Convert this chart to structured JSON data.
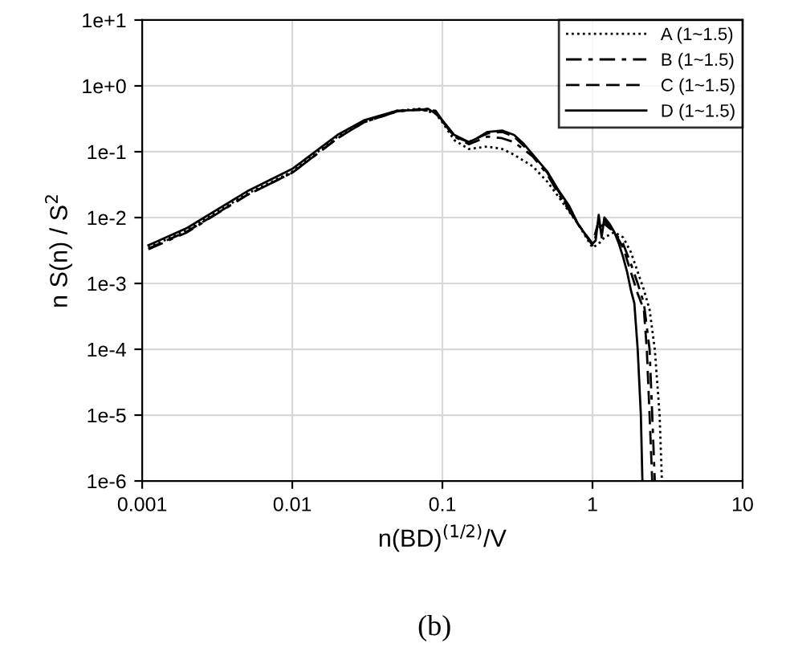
{
  "chart_data": {
    "type": "line",
    "xlabel": "n(BD)$^{(1/2)}$/V",
    "ylabel": "n S(n) / S$^{2}$",
    "annotations": [
      "(b)"
    ],
    "log": "xy",
    "grid": true,
    "legend": "top right",
    "xlim": [
      0.001,
      10
    ],
    "xticks": [
      0.001,
      0.01,
      0.1,
      1,
      10
    ],
    "ylim": [
      1e-06,
      10
    ],
    "yticks": [
      {
        "value": 1e-06,
        "label": "1e-6"
      },
      {
        "value": 1e-05,
        "label": "1e-5"
      },
      {
        "value": 0.0001,
        "label": "1e-4"
      },
      {
        "value": 0.001,
        "label": "1e-3"
      },
      {
        "value": 0.01,
        "label": "1e-2"
      },
      {
        "value": 0.1,
        "label": "1e-1"
      },
      {
        "value": 1,
        "label": "1e+0"
      },
      {
        "value": 10,
        "label": "1e+1"
      }
    ],
    "series": [
      {
        "name": "A (1~1.5)",
        "color": "#000000",
        "line_style": "dotted",
        "x": [
          0.0011,
          0.002,
          0.005,
          0.01,
          0.02,
          0.03,
          0.05,
          0.07,
          0.09,
          0.1,
          0.12,
          0.15,
          0.2,
          0.25,
          0.3,
          0.4,
          0.5,
          0.6,
          0.8,
          1.0,
          1.1,
          1.2,
          1.4,
          1.6,
          1.8,
          2.0,
          2.2,
          2.4,
          2.6,
          2.8,
          2.9
        ],
        "values": [
          0.0035,
          0.0065,
          0.023,
          0.05,
          0.17,
          0.29,
          0.42,
          0.45,
          0.38,
          0.28,
          0.15,
          0.11,
          0.12,
          0.11,
          0.09,
          0.06,
          0.035,
          0.02,
          0.008,
          0.0035,
          0.004,
          0.005,
          0.006,
          0.005,
          0.003,
          0.0015,
          0.0008,
          0.0004,
          0.0001,
          1e-05,
          1e-06
        ]
      },
      {
        "name": "B (1~1.5)",
        "color": "#000000",
        "line_style": "dashdot",
        "x": [
          0.0011,
          0.002,
          0.005,
          0.01,
          0.02,
          0.03,
          0.05,
          0.07,
          0.09,
          0.1,
          0.12,
          0.15,
          0.2,
          0.25,
          0.3,
          0.4,
          0.5,
          0.6,
          0.8,
          1.0,
          1.1,
          1.2,
          1.4,
          1.6,
          1.8,
          2.0,
          2.2,
          2.4,
          2.5,
          2.6
        ],
        "values": [
          0.0033,
          0.006,
          0.022,
          0.048,
          0.16,
          0.28,
          0.41,
          0.44,
          0.4,
          0.29,
          0.17,
          0.13,
          0.17,
          0.16,
          0.14,
          0.085,
          0.045,
          0.022,
          0.008,
          0.0038,
          0.007,
          0.008,
          0.006,
          0.004,
          0.002,
          0.001,
          0.0005,
          0.0001,
          1e-05,
          1e-06
        ]
      },
      {
        "name": "C (1~1.5)",
        "color": "#000000",
        "line_style": "dashed",
        "x": [
          0.0011,
          0.002,
          0.005,
          0.01,
          0.02,
          0.03,
          0.05,
          0.07,
          0.09,
          0.1,
          0.12,
          0.15,
          0.2,
          0.25,
          0.3,
          0.4,
          0.5,
          0.6,
          0.8,
          1.0,
          1.1,
          1.2,
          1.4,
          1.6,
          1.8,
          2.0,
          2.2,
          2.3,
          2.4,
          2.5
        ],
        "values": [
          0.0034,
          0.0062,
          0.022,
          0.048,
          0.16,
          0.28,
          0.41,
          0.44,
          0.42,
          0.3,
          0.17,
          0.14,
          0.19,
          0.2,
          0.17,
          0.09,
          0.048,
          0.024,
          0.008,
          0.004,
          0.009,
          0.009,
          0.006,
          0.0035,
          0.0015,
          0.0007,
          0.0004,
          0.0001,
          1e-05,
          1e-06
        ]
      },
      {
        "name": "D (1~1.5)",
        "color": "#000000",
        "line_style": "solid",
        "x": [
          0.0011,
          0.002,
          0.005,
          0.01,
          0.02,
          0.03,
          0.05,
          0.07,
          0.08,
          0.09,
          0.1,
          0.12,
          0.15,
          0.17,
          0.2,
          0.25,
          0.3,
          0.35,
          0.4,
          0.5,
          0.6,
          0.7,
          0.8,
          0.9,
          1.0,
          1.05,
          1.1,
          1.15,
          1.2,
          1.3,
          1.4,
          1.5,
          1.6,
          1.7,
          1.8,
          1.9,
          2.0,
          2.1,
          2.15
        ],
        "values": [
          0.0038,
          0.007,
          0.025,
          0.055,
          0.18,
          0.3,
          0.42,
          0.43,
          0.45,
          0.38,
          0.3,
          0.18,
          0.14,
          0.16,
          0.2,
          0.21,
          0.18,
          0.13,
          0.09,
          0.05,
          0.025,
          0.015,
          0.008,
          0.0055,
          0.004,
          0.0045,
          0.011,
          0.005,
          0.01,
          0.008,
          0.006,
          0.004,
          0.0025,
          0.0015,
          0.0008,
          0.0005,
          0.0001,
          1e-05,
          1e-06
        ]
      }
    ]
  }
}
